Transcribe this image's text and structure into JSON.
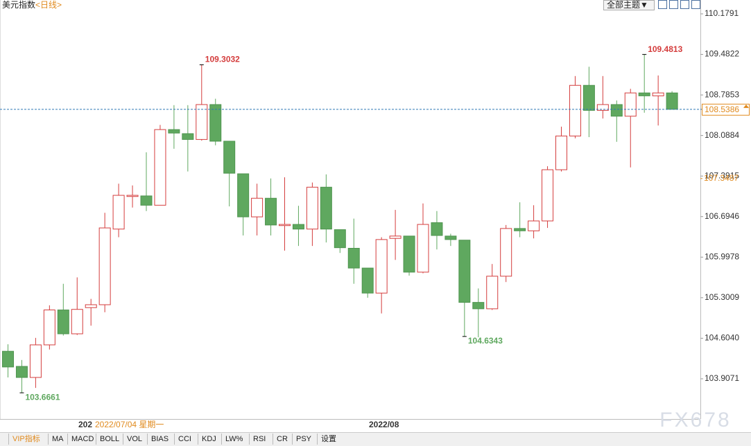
{
  "header": {
    "title": "美元指数",
    "period": "<日线>",
    "theme_button": "全部主题▼"
  },
  "chart_data": {
    "type": "candlestick",
    "open": [
      104.38,
      104.12,
      103.93,
      104.49,
      105.09,
      104.68,
      105.13,
      105.18,
      106.48,
      107.04,
      107.05,
      106.89,
      108.19,
      108.12,
      108.02,
      108.62,
      107.99,
      107.43,
      106.69,
      107.01,
      106.54,
      106.56,
      106.48,
      107.2,
      106.47,
      106.15,
      105.81,
      105.38,
      106.32,
      106.36,
      105.74,
      106.59,
      106.36,
      106.29,
      105.22,
      105.11,
      105.67,
      106.49,
      106.45,
      106.62,
      107.5,
      108.08,
      108.95,
      108.52,
      108.62,
      108.42,
      108.82,
      108.77,
      108.82
    ],
    "high": [
      104.5,
      104.23,
      104.61,
      105.17,
      105.54,
      105.65,
      105.28,
      106.76,
      107.26,
      107.23,
      107.8,
      108.27,
      108.61,
      108.61,
      109.3032,
      108.72,
      107.99,
      107.43,
      107.26,
      107.35,
      107.37,
      106.88,
      107.28,
      107.42,
      106.47,
      106.66,
      105.81,
      106.34,
      106.81,
      106.36,
      106.92,
      106.79,
      106.4,
      106.29,
      105.46,
      105.88,
      106.55,
      106.94,
      106.89,
      107.56,
      108.24,
      109.11,
      109.27,
      109.11,
      108.69,
      108.89,
      109.4813,
      109.12,
      108.85
    ],
    "low": [
      103.93,
      103.6661,
      103.75,
      104.41,
      104.65,
      104.66,
      104.82,
      105.05,
      106.34,
      106.85,
      106.79,
      106.89,
      107.86,
      107.47,
      108.0,
      107.92,
      106.87,
      106.37,
      106.37,
      106.37,
      106.11,
      106.19,
      106.19,
      106.25,
      106.07,
      105.54,
      105.3,
      105.03,
      105.95,
      105.68,
      105.72,
      106.13,
      106.19,
      104.6343,
      104.62,
      105.09,
      105.57,
      106.34,
      106.32,
      106.5,
      107.47,
      108.04,
      108.06,
      108.38,
      107.98,
      107.54,
      108.48,
      108.26,
      108.5386
    ],
    "close": [
      104.11,
      103.93,
      104.49,
      105.09,
      104.68,
      105.1,
      105.18,
      106.5,
      107.06,
      107.06,
      106.89,
      108.19,
      108.13,
      108.02,
      108.62,
      107.99,
      107.44,
      106.69,
      107.01,
      106.55,
      106.56,
      106.48,
      107.2,
      106.48,
      106.16,
      105.81,
      105.38,
      106.3,
      106.36,
      105.74,
      106.56,
      106.37,
      106.3,
      105.22,
      105.11,
      105.67,
      106.49,
      106.45,
      106.62,
      107.5,
      108.08,
      108.95,
      108.52,
      108.62,
      108.42,
      108.82,
      108.77,
      108.82,
      108.5386
    ],
    "colors": {
      "up": "#d43c3c",
      "down": "#5fa85f"
    },
    "ylim": [
      103.216,
      110.417
    ],
    "yticks": [
      110.1791,
      109.4822,
      108.7853,
      108.0884,
      107.3915,
      106.6946,
      105.9978,
      105.3009,
      {
        "value": 104.604,
        "label": "104.6040"
      },
      103.9071
    ],
    "last_price_line": true,
    "marker_value": 107.3487,
    "x_labels": [
      "202",
      "2022/08"
    ],
    "crosshair_date": "2022/07/04 星期一"
  },
  "toolbar": [
    "VIP指标",
    "MA",
    "MACD",
    "BOLL",
    "VOL",
    "BIAS",
    "CCI",
    "KDJ",
    "LW%",
    "RSI",
    "CR",
    "PSY",
    "设置"
  ],
  "watermark": "FX678"
}
